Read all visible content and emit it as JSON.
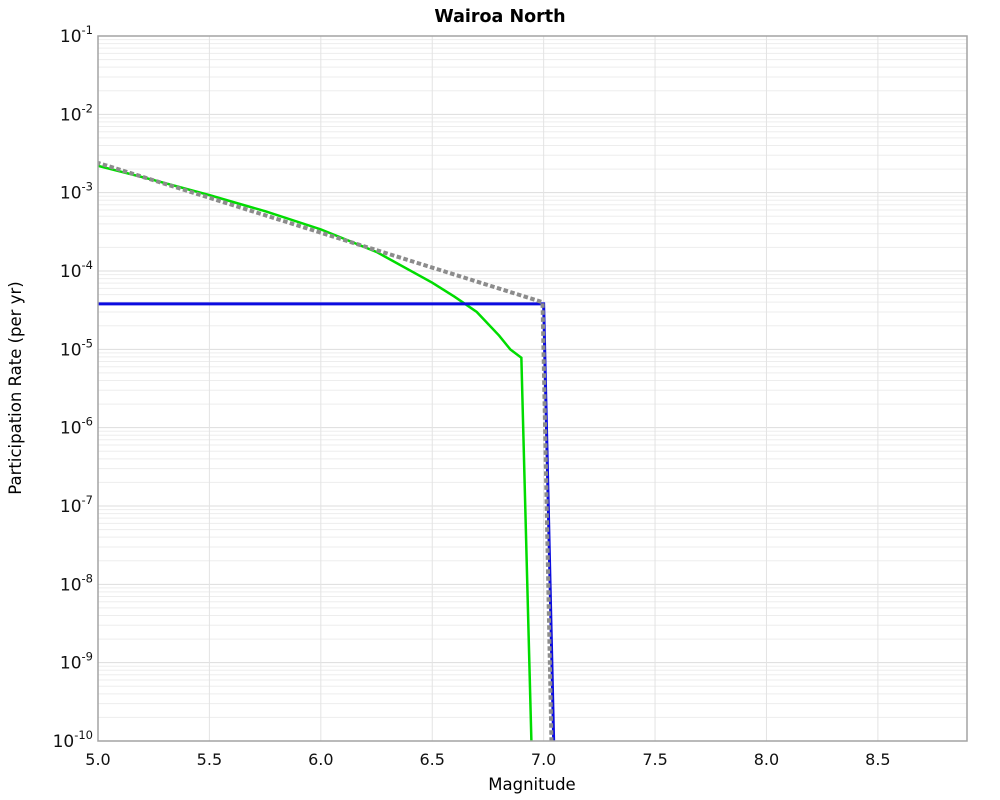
{
  "chart_data": {
    "type": "line",
    "title": "Wairoa North",
    "xlabel": "Magnitude",
    "ylabel": "Participation Rate (per yr)",
    "xlim": [
      5.0,
      8.9
    ],
    "ylim_log10": [
      -10,
      -1
    ],
    "xticks": [
      5.0,
      5.5,
      6.0,
      6.5,
      7.0,
      7.5,
      8.0,
      8.5
    ],
    "yticks_log10": [
      -1,
      -2,
      -3,
      -4,
      -5,
      -6,
      -7,
      -8,
      -9,
      -10
    ],
    "grid": "horizontal major + log-minor lines, vertical lines at labeled ticks",
    "legend": "none",
    "colors": {
      "green_series": "#00dc00",
      "blue_series": "#0b0be0",
      "gray_series": "#8c8c8c",
      "grid_minor": "#ededed",
      "grid_major": "#dddddd",
      "plot_border": "#a3a3a3",
      "background": "#ffffff"
    },
    "series": [
      {
        "name": "green-solid-curve",
        "color": "#00dc00",
        "style": "solid",
        "width": 2.5,
        "points": [
          [
            5.0,
            0.0022
          ],
          [
            5.25,
            0.00145
          ],
          [
            5.5,
            0.00093
          ],
          [
            5.75,
            0.00058
          ],
          [
            6.0,
            0.00034
          ],
          [
            6.25,
            0.000175
          ],
          [
            6.5,
            7.1e-05
          ],
          [
            6.6,
            4.7e-05
          ],
          [
            6.7,
            3e-05
          ],
          [
            6.8,
            1.5e-05
          ],
          [
            6.85,
            1e-05
          ],
          [
            6.9,
            7.8e-06
          ],
          [
            6.945,
            1e-10
          ]
        ]
      },
      {
        "name": "blue-solid-line",
        "color": "#0b0be0",
        "style": "solid",
        "width": 3,
        "points": [
          [
            5.0,
            3.8e-05
          ],
          [
            7.0,
            3.8e-05
          ],
          [
            7.045,
            1e-10
          ]
        ]
      },
      {
        "name": "gray-dotted-line",
        "color": "#8c8c8c",
        "style": "dotted",
        "width": 4,
        "points": [
          [
            5.0,
            0.0024
          ],
          [
            6.995,
            4e-05
          ],
          [
            7.035,
            1e-10
          ]
        ]
      }
    ]
  }
}
